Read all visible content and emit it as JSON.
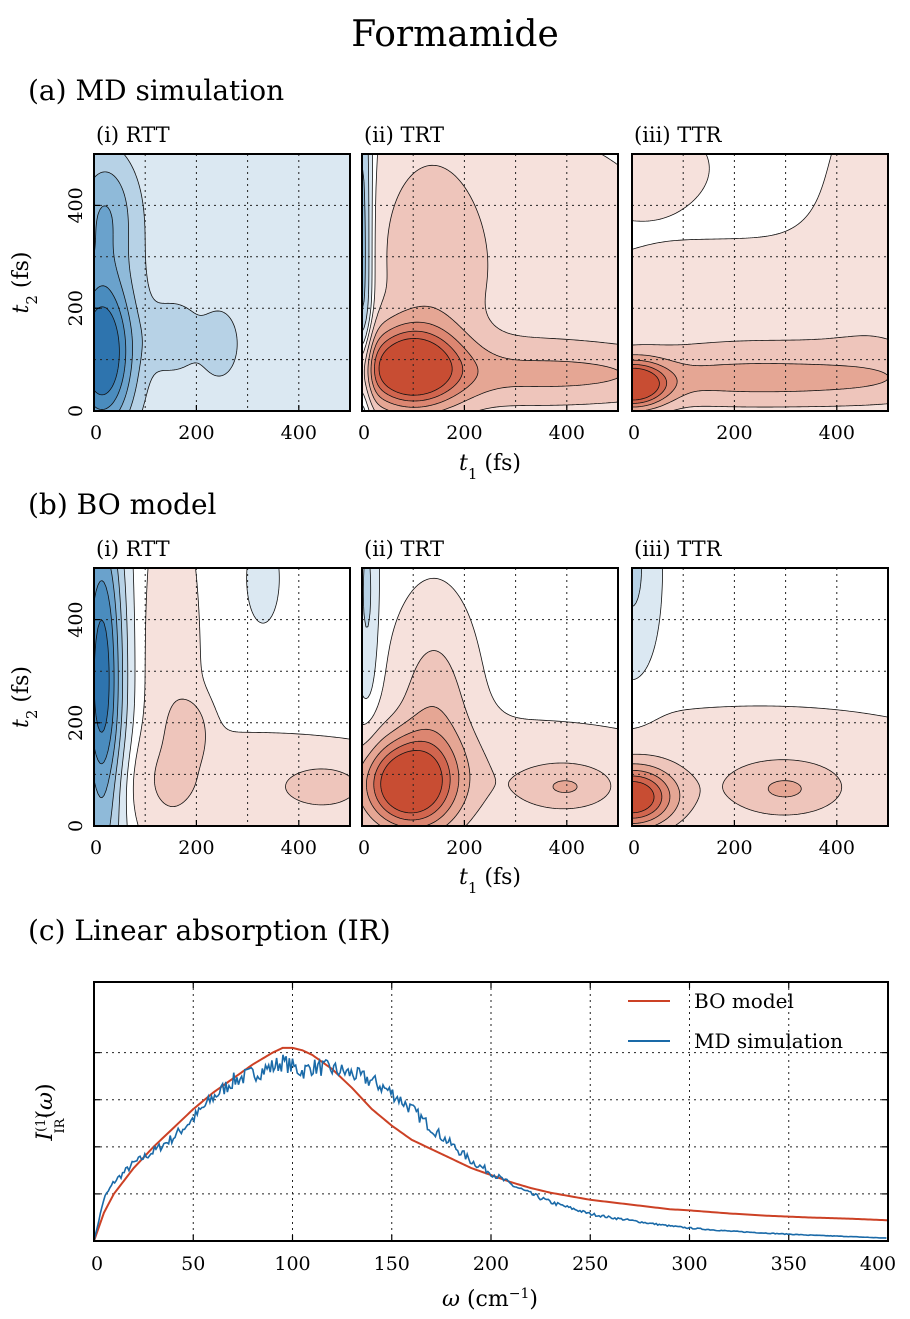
{
  "figure": {
    "title": "Formamide",
    "sections": {
      "a": "(a) MD simulation",
      "b": "(b) BO model",
      "c": "(c) Linear absorption (IR)"
    }
  },
  "colors": {
    "blue_levels": [
      "#dbe8f2",
      "#b7d2e6",
      "#8fbad9",
      "#6aa2cc",
      "#4a8cbe",
      "#2e74ae"
    ],
    "red_levels": [
      "#f6e1dc",
      "#eec5bb",
      "#e5a694",
      "#dc8671",
      "#d1654e",
      "#c84d33"
    ],
    "bo_line": "#cc4125",
    "md_line": "#1a6aa8"
  },
  "chart_data": [
    {
      "id": "a-i",
      "type": "heatmap",
      "panel": "(i) RTT",
      "xlabel": "",
      "ylabel": "t2 (fs)",
      "xlim": [
        0,
        500
      ],
      "ylim": [
        0,
        500
      ],
      "xticks": [
        "0",
        "200",
        "400"
      ],
      "yticks": [
        "0",
        "200",
        "400"
      ],
      "features": [
        {
          "sign": -1,
          "t1": 15,
          "t2": 110,
          "amp": 6.3,
          "s1": 45,
          "s2": 110
        },
        {
          "sign": -1,
          "t1": 20,
          "t2": 390,
          "amp": 2.6,
          "s1": 45,
          "s2": 90
        },
        {
          "sign": -1,
          "t1": 155,
          "t2": 140,
          "amp": 1.4,
          "s1": 35,
          "s2": 45
        },
        {
          "sign": -1,
          "t1": 245,
          "t2": 125,
          "amp": 1.3,
          "s1": 25,
          "s2": 45
        },
        {
          "sign": -1,
          "t1": 250,
          "t2": 250,
          "amp": 0.9,
          "s1": 260,
          "s2": 260
        }
      ]
    },
    {
      "id": "a-ii",
      "type": "heatmap",
      "panel": "(ii) TRT",
      "xlabel": "",
      "ylabel": "",
      "xlim": [
        0,
        500
      ],
      "ylim": [
        0,
        500
      ],
      "xticks": [
        "0",
        "200",
        "400"
      ],
      "yticks": [],
      "features": [
        {
          "sign": 1,
          "t1": 95,
          "t2": 85,
          "amp": 6.2,
          "s1": 65,
          "s2": 55
        },
        {
          "sign": 1,
          "t1": 130,
          "t2": 320,
          "amp": 1.4,
          "s1": 80,
          "s2": 170
        },
        {
          "sign": 1,
          "t1": 400,
          "t2": 70,
          "amp": 2.0,
          "s1": 300,
          "s2": 45
        },
        {
          "sign": 1,
          "t1": 300,
          "t2": 250,
          "amp": 0.85,
          "s1": 240,
          "s2": 220
        },
        {
          "sign": -1,
          "t1": 0,
          "t2": 300,
          "amp": 3.5,
          "s1": 14,
          "s2": 260
        }
      ]
    },
    {
      "id": "a-iii",
      "type": "heatmap",
      "panel": "(iii) TTR",
      "xlabel": "",
      "ylabel": "",
      "xlim": [
        0,
        500
      ],
      "ylim": [
        0,
        500
      ],
      "xticks": [
        "0",
        "200",
        "400"
      ],
      "yticks": [],
      "features": [
        {
          "sign": 1,
          "t1": 0,
          "t2": 50,
          "amp": 6.2,
          "s1": 45,
          "s2": 30
        },
        {
          "sign": 1,
          "t1": 250,
          "t2": 60,
          "amp": 2.0,
          "s1": 360,
          "s2": 40
        },
        {
          "sign": 1,
          "t1": 250,
          "t2": 160,
          "amp": 1.0,
          "s1": 330,
          "s2": 120
        },
        {
          "sign": 1,
          "t1": 0,
          "t2": 480,
          "amp": 1.0,
          "s1": 100,
          "s2": 60
        },
        {
          "sign": 1,
          "t1": 500,
          "t2": 400,
          "amp": 0.8,
          "s1": 90,
          "s2": 200
        }
      ]
    },
    {
      "id": "b-i",
      "type": "heatmap",
      "panel": "(i) RTT",
      "xlabel": "",
      "ylabel": "t2 (fs)",
      "xlim": [
        0,
        500
      ],
      "ylim": [
        0,
        500
      ],
      "xticks": [
        "0",
        "200",
        "400"
      ],
      "yticks": [
        "0",
        "200",
        "400"
      ],
      "features": [
        {
          "sign": -1,
          "t1": 15,
          "t2": 280,
          "amp": 6.0,
          "s1": 30,
          "s2": 240
        },
        {
          "sign": -1,
          "t1": 330,
          "t2": 480,
          "amp": 1.0,
          "s1": 22,
          "s2": 60
        },
        {
          "sign": 1,
          "t1": 190,
          "t2": 190,
          "amp": 1.4,
          "s1": 25,
          "s2": 40
        },
        {
          "sign": 1,
          "t1": 450,
          "t2": 75,
          "amp": 1.4,
          "s1": 45,
          "s2": 25
        },
        {
          "sign": 1,
          "t1": 300,
          "t2": 80,
          "amp": 1.0,
          "s1": 280,
          "s2": 70
        },
        {
          "sign": 1,
          "t1": 150,
          "t2": 300,
          "amp": 1.0,
          "s1": 40,
          "s2": 250
        }
      ]
    },
    {
      "id": "b-ii",
      "type": "heatmap",
      "panel": "(ii) TRT",
      "xlabel": "",
      "ylabel": "",
      "xlim": [
        0,
        500
      ],
      "ylim": [
        0,
        500
      ],
      "xticks": [
        "0",
        "200",
        "400"
      ],
      "yticks": [],
      "features": [
        {
          "sign": 1,
          "t1": 85,
          "t2": 80,
          "amp": 6.2,
          "s1": 60,
          "s2": 60
        },
        {
          "sign": 1,
          "t1": 140,
          "t2": 200,
          "amp": 2.0,
          "s1": 55,
          "s2": 150
        },
        {
          "sign": 1,
          "t1": 400,
          "t2": 75,
          "amp": 1.5,
          "s1": 60,
          "s2": 30
        },
        {
          "sign": 1,
          "t1": 300,
          "t2": 90,
          "amp": 1.0,
          "s1": 260,
          "s2": 80
        },
        {
          "sign": -1,
          "t1": 10,
          "t2": 450,
          "amp": 1.5,
          "s1": 15,
          "s2": 150
        }
      ]
    },
    {
      "id": "b-iii",
      "type": "heatmap",
      "panel": "(iii) TTR",
      "xlabel": "",
      "ylabel": "",
      "xlim": [
        0,
        500
      ],
      "ylim": [
        0,
        500
      ],
      "xticks": [
        "0",
        "200",
        "400"
      ],
      "yticks": [],
      "features": [
        {
          "sign": 1,
          "t1": 0,
          "t2": 55,
          "amp": 6.2,
          "s1": 55,
          "s2": 40
        },
        {
          "sign": 1,
          "t1": 300,
          "t2": 70,
          "amp": 1.5,
          "s1": 70,
          "s2": 35
        },
        {
          "sign": 1,
          "t1": 250,
          "t2": 95,
          "amp": 1.0,
          "s1": 320,
          "s2": 95
        },
        {
          "sign": -1,
          "t1": 0,
          "t2": 500,
          "amp": 1.5,
          "s1": 35,
          "s2": 140
        }
      ]
    },
    {
      "id": "c",
      "type": "line",
      "xlabel": "ω (cm⁻¹)",
      "ylabel": "I_IR^(1)(ω)",
      "xlim": [
        0,
        400
      ],
      "ylim": [
        0,
        1.1
      ],
      "xticks": [
        "0",
        "50",
        "100",
        "150",
        "200",
        "250",
        "300",
        "350",
        "400"
      ],
      "legend": "top-right",
      "series": [
        {
          "name": "BO model",
          "x": [
            0,
            5,
            10,
            20,
            30,
            40,
            50,
            60,
            70,
            80,
            90,
            95,
            100,
            105,
            110,
            120,
            130,
            140,
            150,
            160,
            170,
            180,
            190,
            200,
            210,
            220,
            230,
            240,
            250,
            260,
            270,
            280,
            290,
            300,
            320,
            340,
            360,
            380,
            400
          ],
          "y": [
            0,
            0.12,
            0.2,
            0.31,
            0.4,
            0.48,
            0.56,
            0.63,
            0.69,
            0.75,
            0.8,
            0.82,
            0.82,
            0.81,
            0.79,
            0.73,
            0.65,
            0.56,
            0.49,
            0.43,
            0.39,
            0.35,
            0.31,
            0.28,
            0.25,
            0.225,
            0.205,
            0.19,
            0.175,
            0.165,
            0.155,
            0.145,
            0.135,
            0.13,
            0.117,
            0.107,
            0.1,
            0.095,
            0.088
          ]
        },
        {
          "name": "MD simulation",
          "x": [
            0,
            5,
            10,
            20,
            30,
            40,
            50,
            60,
            70,
            80,
            90,
            95,
            100,
            105,
            110,
            120,
            130,
            140,
            150,
            160,
            170,
            180,
            190,
            200,
            210,
            220,
            230,
            240,
            250,
            260,
            270,
            280,
            290,
            300,
            320,
            340,
            360,
            380,
            400
          ],
          "y": [
            0,
            0.18,
            0.25,
            0.33,
            0.38,
            0.44,
            0.52,
            0.61,
            0.68,
            0.71,
            0.74,
            0.76,
            0.74,
            0.72,
            0.74,
            0.73,
            0.71,
            0.68,
            0.63,
            0.56,
            0.48,
            0.41,
            0.34,
            0.29,
            0.24,
            0.2,
            0.165,
            0.14,
            0.115,
            0.1,
            0.088,
            0.075,
            0.064,
            0.055,
            0.042,
            0.033,
            0.025,
            0.019,
            0.012
          ]
        }
      ]
    }
  ]
}
